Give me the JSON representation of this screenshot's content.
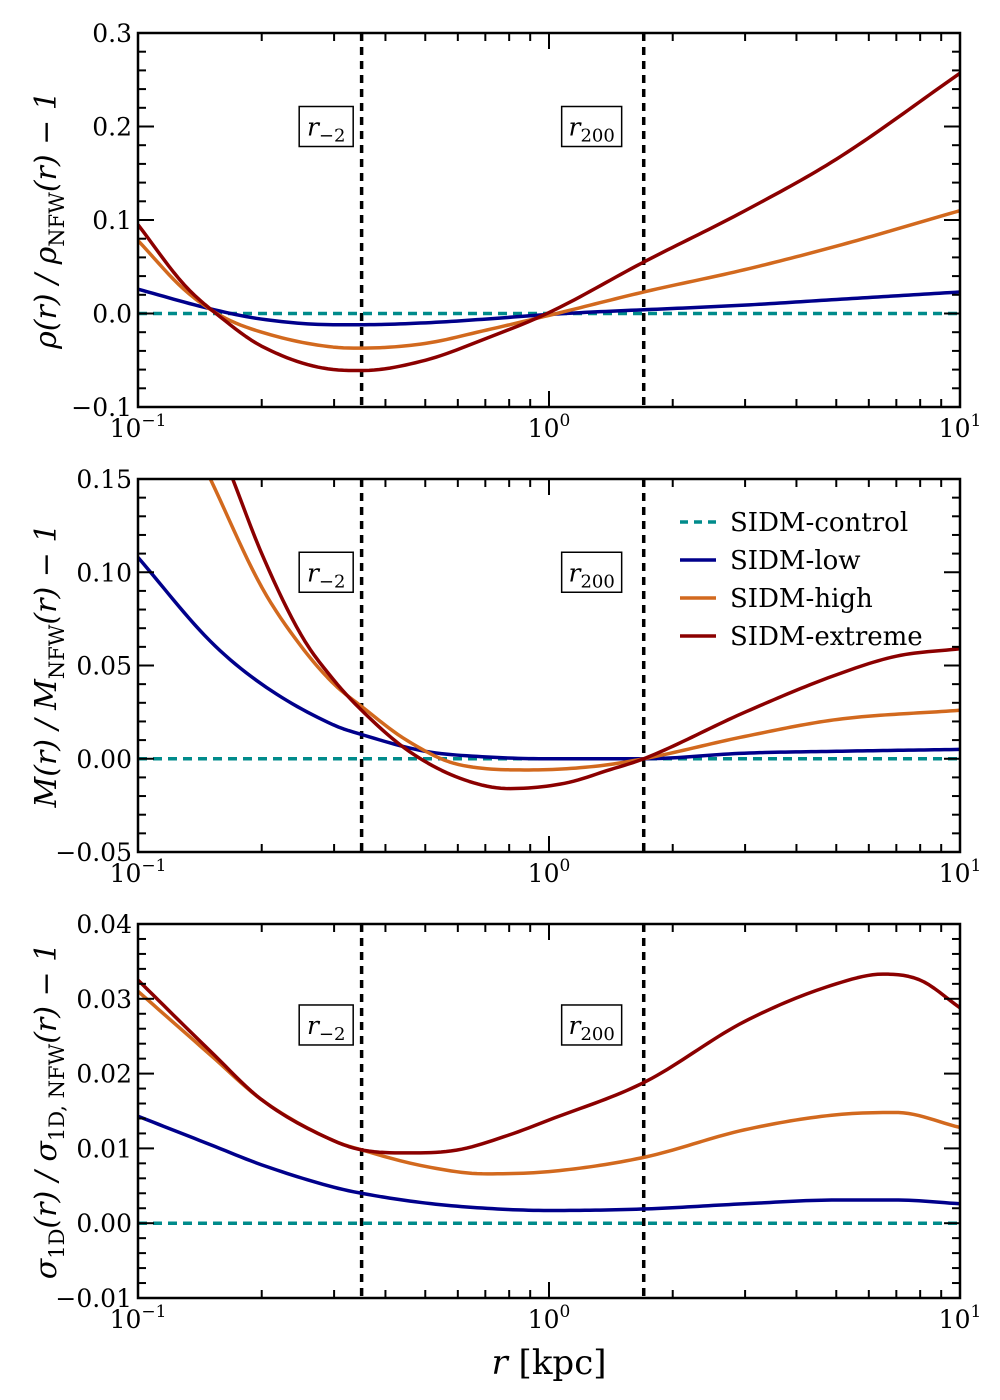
{
  "chart_data": [
    {
      "type": "line",
      "id": "density",
      "xscale": "log",
      "xlim": [
        0.1,
        10
      ],
      "ylim": [
        -0.1,
        0.3
      ],
      "yticks": [
        -0.1,
        0.0,
        0.1,
        0.2,
        0.3
      ],
      "ytick_labels": [
        "−0.1",
        "0.0",
        "0.1",
        "0.2",
        "0.3"
      ],
      "xtick_labels": [
        {
          "base": "10",
          "exp": "−1"
        },
        {
          "base": "10",
          "exp": "0"
        },
        {
          "base": "10",
          "exp": "1"
        }
      ],
      "ylabel": {
        "parts": [
          "ρ(r) / ρ",
          "NFW",
          "(r) − 1"
        ]
      },
      "xlabel": "",
      "vlines": [
        0.35,
        1.7
      ],
      "annotations": [
        {
          "text": "r",
          "sub": "−2",
          "x": 0.287,
          "y": 0.2
        },
        {
          "text": "r",
          "sub": "200",
          "x": 1.27,
          "y": 0.2
        }
      ],
      "series": [
        {
          "name": "SIDM-control",
          "color": "#008b8b",
          "dashed": true,
          "x": [
            0.1,
            10
          ],
          "y": [
            0.0,
            0.0
          ]
        },
        {
          "name": "SIDM-low",
          "color": "#00008b",
          "x": [
            0.1,
            0.15,
            0.2,
            0.3,
            0.35,
            0.5,
            0.7,
            1.0,
            1.5,
            1.7,
            3,
            5,
            10
          ],
          "y": [
            0.026,
            0.005,
            -0.006,
            -0.012,
            -0.012,
            -0.01,
            -0.006,
            -0.001,
            0.003,
            0.004,
            0.009,
            0.015,
            0.023
          ]
        },
        {
          "name": "SIDM-high",
          "color": "#d2691e",
          "x": [
            0.1,
            0.13,
            0.16,
            0.2,
            0.3,
            0.35,
            0.5,
            0.7,
            1.0,
            1.7,
            3,
            5,
            10
          ],
          "y": [
            0.078,
            0.025,
            -0.003,
            -0.02,
            -0.036,
            -0.037,
            -0.032,
            -0.018,
            -0.002,
            0.023,
            0.047,
            0.072,
            0.11
          ]
        },
        {
          "name": "SIDM-extreme",
          "color": "#8b0000",
          "x": [
            0.1,
            0.13,
            0.16,
            0.2,
            0.3,
            0.35,
            0.5,
            0.7,
            1.0,
            1.7,
            3,
            5,
            10
          ],
          "y": [
            0.095,
            0.03,
            -0.005,
            -0.035,
            -0.06,
            -0.061,
            -0.05,
            -0.027,
            0.001,
            0.055,
            0.11,
            0.165,
            0.257
          ]
        }
      ]
    },
    {
      "type": "line",
      "id": "mass",
      "xscale": "log",
      "xlim": [
        0.1,
        10
      ],
      "ylim": [
        -0.05,
        0.15
      ],
      "yticks": [
        -0.05,
        0.0,
        0.05,
        0.1,
        0.15
      ],
      "ytick_labels": [
        "−0.05",
        "0.00",
        "0.05",
        "0.10",
        "0.15"
      ],
      "xtick_labels": [
        {
          "base": "10",
          "exp": "−1"
        },
        {
          "base": "10",
          "exp": "0"
        },
        {
          "base": "10",
          "exp": "1"
        }
      ],
      "ylabel": {
        "parts": [
          "M(r) / M",
          "NFW",
          "(r) − 1"
        ]
      },
      "xlabel": "",
      "vlines": [
        0.35,
        1.7
      ],
      "annotations": [
        {
          "text": "r",
          "sub": "−2",
          "x": 0.287,
          "y": 0.1
        },
        {
          "text": "r",
          "sub": "200",
          "x": 1.27,
          "y": 0.1
        }
      ],
      "legend": {
        "location": "top-right",
        "entries": [
          "SIDM-control",
          "SIDM-low",
          "SIDM-high",
          "SIDM-extreme"
        ]
      },
      "series": [
        {
          "name": "SIDM-control",
          "color": "#008b8b",
          "dashed": true,
          "x": [
            0.1,
            10
          ],
          "y": [
            0.0,
            0.0
          ]
        },
        {
          "name": "SIDM-low",
          "color": "#00008b",
          "x": [
            0.1,
            0.15,
            0.2,
            0.3,
            0.35,
            0.5,
            0.7,
            1.0,
            1.7,
            3,
            5,
            10
          ],
          "y": [
            0.108,
            0.063,
            0.04,
            0.018,
            0.013,
            0.004,
            0.001,
            0.0,
            0.0,
            0.003,
            0.004,
            0.005
          ]
        },
        {
          "name": "SIDM-high",
          "color": "#d2691e",
          "x": [
            0.15,
            0.2,
            0.25,
            0.3,
            0.35,
            0.45,
            0.6,
            0.9,
            1.3,
            1.7,
            3,
            5,
            10
          ],
          "y": [
            0.15,
            0.092,
            0.06,
            0.04,
            0.028,
            0.01,
            -0.003,
            -0.006,
            -0.004,
            0.0,
            0.012,
            0.021,
            0.026
          ]
        },
        {
          "name": "SIDM-extreme",
          "color": "#8b0000",
          "x": [
            0.17,
            0.2,
            0.25,
            0.3,
            0.35,
            0.45,
            0.6,
            0.8,
            1.1,
            1.4,
            1.7,
            3,
            5,
            7,
            10
          ],
          "y": [
            0.15,
            0.11,
            0.066,
            0.042,
            0.026,
            0.005,
            -0.01,
            -0.016,
            -0.013,
            -0.006,
            0.0,
            0.025,
            0.045,
            0.055,
            0.059
          ]
        }
      ]
    },
    {
      "type": "line",
      "id": "velocity-dispersion",
      "xscale": "log",
      "xlim": [
        0.1,
        10
      ],
      "ylim": [
        -0.01,
        0.04
      ],
      "yticks": [
        -0.01,
        0.0,
        0.01,
        0.02,
        0.03,
        0.04
      ],
      "ytick_labels": [
        "−0.01",
        "0.00",
        "0.01",
        "0.02",
        "0.03",
        "0.04"
      ],
      "xtick_labels": [
        {
          "base": "10",
          "exp": "−1"
        },
        {
          "base": "10",
          "exp": "0"
        },
        {
          "base": "10",
          "exp": "1"
        }
      ],
      "ylabel": {
        "parts": [
          "σ",
          "1D",
          "(r) / σ",
          "1D, NFW",
          "(r) − 1"
        ]
      },
      "xlabel": "r [kpc]",
      "vlines": [
        0.35,
        1.7
      ],
      "annotations": [
        {
          "text": "r",
          "sub": "−2",
          "x": 0.287,
          "y": 0.0265
        },
        {
          "text": "r",
          "sub": "200",
          "x": 1.27,
          "y": 0.0265
        }
      ],
      "series": [
        {
          "name": "SIDM-control",
          "color": "#008b8b",
          "dashed": true,
          "x": [
            0.1,
            10
          ],
          "y": [
            0.0,
            0.0
          ]
        },
        {
          "name": "SIDM-low",
          "color": "#00008b",
          "x": [
            0.1,
            0.15,
            0.2,
            0.3,
            0.35,
            0.5,
            0.7,
            1.0,
            1.7,
            3,
            5,
            7,
            10
          ],
          "y": [
            0.0143,
            0.0105,
            0.0078,
            0.0048,
            0.004,
            0.0027,
            0.002,
            0.0017,
            0.0019,
            0.0026,
            0.0031,
            0.0031,
            0.0026
          ]
        },
        {
          "name": "SIDM-high",
          "color": "#d2691e",
          "x": [
            0.1,
            0.15,
            0.2,
            0.3,
            0.35,
            0.5,
            0.7,
            1.0,
            1.7,
            3,
            5,
            7,
            10
          ],
          "y": [
            0.031,
            0.0225,
            0.0165,
            0.011,
            0.0098,
            0.0076,
            0.0066,
            0.0069,
            0.0088,
            0.0125,
            0.0145,
            0.0148,
            0.0128
          ]
        },
        {
          "name": "SIDM-extreme",
          "color": "#8b0000",
          "x": [
            0.1,
            0.15,
            0.2,
            0.3,
            0.35,
            0.45,
            0.6,
            0.8,
            1.0,
            1.7,
            3,
            5,
            6.5,
            8,
            10
          ],
          "y": [
            0.0325,
            0.023,
            0.0165,
            0.011,
            0.0098,
            0.0094,
            0.0098,
            0.0118,
            0.0138,
            0.0188,
            0.027,
            0.032,
            0.0333,
            0.0325,
            0.0288
          ]
        }
      ]
    }
  ]
}
